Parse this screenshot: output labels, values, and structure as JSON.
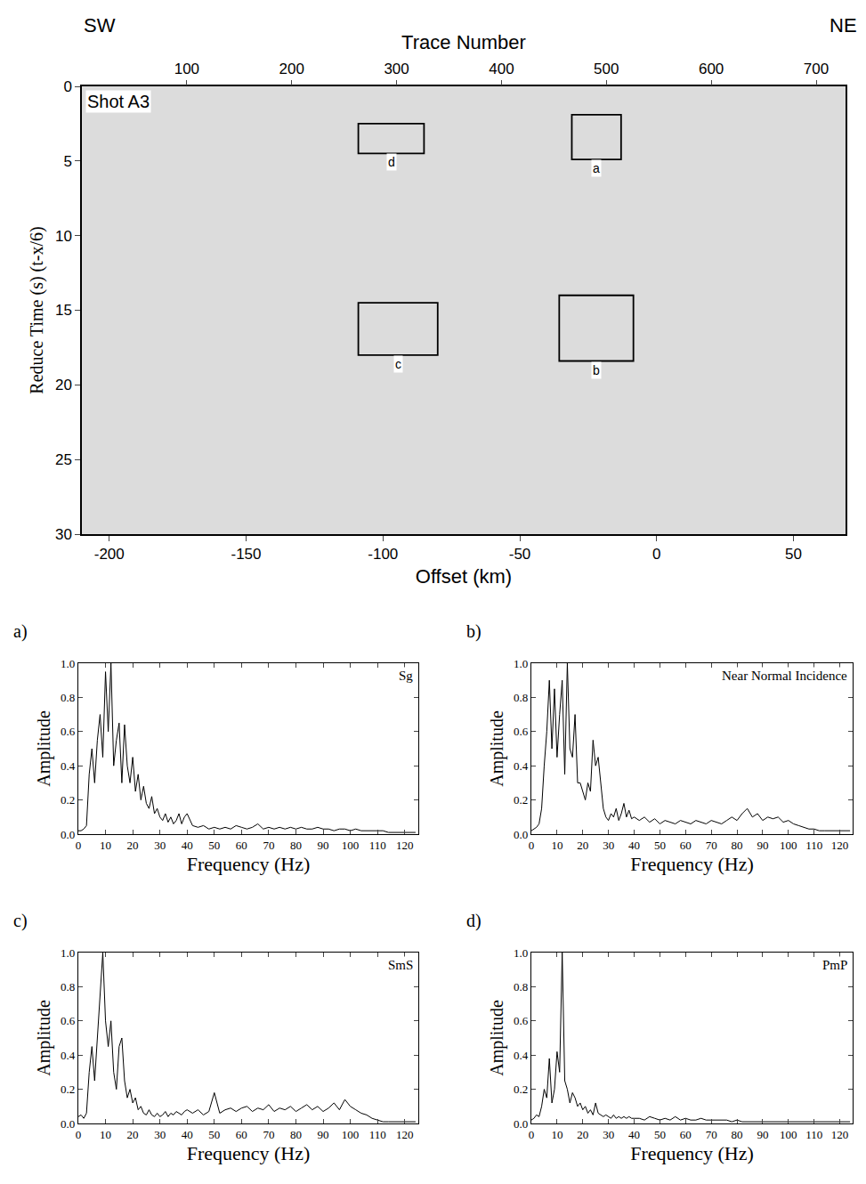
{
  "chart_data": [
    {
      "type": "record_section",
      "label": "Shot A3",
      "left_label": "SW",
      "right_label": "NE",
      "xlabel": "Offset (km)",
      "ylabel": "Reduce Time (s) (t-x/6)",
      "x2label": "Trace Number",
      "xlim": [
        -210,
        69
      ],
      "xticks": [
        -200,
        -150,
        -100,
        -50,
        0,
        50
      ],
      "x2lim": [
        0,
        728
      ],
      "x2ticks": [
        100,
        200,
        300,
        400,
        500,
        600,
        700
      ],
      "ylim": [
        0,
        30
      ],
      "yticks": [
        0,
        5,
        10,
        15,
        20,
        25,
        30
      ],
      "boxes": [
        {
          "label": "a",
          "x": [
            -31,
            -13
          ],
          "y": [
            1.9,
            4.9
          ]
        },
        {
          "label": "b",
          "x": [
            -35.6,
            -8.5
          ],
          "y": [
            14,
            18.4
          ]
        },
        {
          "label": "c",
          "x": [
            -109,
            -80
          ],
          "y": [
            14.5,
            18
          ]
        },
        {
          "label": "d",
          "x": [
            -109,
            -85
          ],
          "y": [
            2.5,
            4.5
          ]
        }
      ]
    },
    {
      "type": "line",
      "panel": "a)",
      "title": "Sg",
      "xlabel": "Frequency (Hz)",
      "ylabel": "Amplitude",
      "xlim": [
        0,
        125
      ],
      "xticks": [
        0,
        10,
        20,
        30,
        40,
        50,
        60,
        70,
        80,
        90,
        100,
        110,
        120
      ],
      "ylim": [
        0,
        1
      ],
      "yticks": [
        {
          "value": 0,
          "label": "0.0"
        },
        0.2,
        0.4,
        0.6,
        0.8,
        {
          "value": 1,
          "label": "1.0"
        }
      ],
      "color": "#000000",
      "x": [
        0,
        1,
        2,
        3,
        4,
        5,
        6,
        7,
        8,
        9,
        10,
        11,
        12,
        13,
        14,
        15,
        16,
        17,
        18,
        19,
        20,
        21,
        22,
        23,
        24,
        25,
        26,
        27,
        28,
        29,
        30,
        31,
        32,
        33,
        34,
        35,
        36,
        37,
        38,
        39,
        40,
        42,
        44,
        46,
        48,
        50,
        52,
        54,
        56,
        58,
        60,
        62,
        64,
        66,
        68,
        70,
        72,
        74,
        76,
        78,
        80,
        82,
        84,
        86,
        88,
        90,
        92,
        94,
        96,
        98,
        100,
        102,
        104,
        106,
        108,
        110,
        112,
        114,
        116,
        118,
        120,
        122,
        124
      ],
      "values": [
        0.02,
        0.02,
        0.03,
        0.05,
        0.35,
        0.5,
        0.3,
        0.55,
        0.7,
        0.45,
        0.95,
        0.6,
        1.0,
        0.4,
        0.55,
        0.65,
        0.3,
        0.64,
        0.4,
        0.3,
        0.45,
        0.25,
        0.35,
        0.2,
        0.28,
        0.18,
        0.15,
        0.22,
        0.12,
        0.15,
        0.1,
        0.08,
        0.12,
        0.07,
        0.1,
        0.06,
        0.08,
        0.12,
        0.06,
        0.1,
        0.12,
        0.05,
        0.04,
        0.05,
        0.03,
        0.04,
        0.03,
        0.04,
        0.03,
        0.05,
        0.04,
        0.03,
        0.04,
        0.06,
        0.03,
        0.04,
        0.03,
        0.04,
        0.03,
        0.04,
        0.03,
        0.04,
        0.03,
        0.03,
        0.04,
        0.03,
        0.03,
        0.02,
        0.03,
        0.03,
        0.02,
        0.03,
        0.02,
        0.02,
        0.02,
        0.02,
        0.02,
        0.01,
        0.01,
        0.01,
        0.01,
        0.01,
        0.01
      ]
    },
    {
      "type": "line",
      "panel": "b)",
      "title": "Near Normal Incidence",
      "xlabel": "Frequency (Hz)",
      "ylabel": "Amplitude",
      "xlim": [
        0,
        125
      ],
      "xticks": [
        0,
        10,
        20,
        30,
        40,
        50,
        60,
        70,
        80,
        90,
        100,
        110,
        120
      ],
      "ylim": [
        0,
        1
      ],
      "yticks": [
        {
          "value": 0,
          "label": "0.0"
        },
        0.2,
        0.4,
        0.6,
        0.8,
        {
          "value": 1,
          "label": "1.0"
        }
      ],
      "color": "#000000",
      "x": [
        0,
        1,
        2,
        3,
        4,
        5,
        6,
        7,
        8,
        9,
        10,
        11,
        12,
        13,
        14,
        15,
        16,
        17,
        18,
        19,
        20,
        21,
        22,
        23,
        24,
        25,
        26,
        27,
        28,
        29,
        30,
        31,
        32,
        33,
        34,
        35,
        36,
        37,
        38,
        39,
        40,
        42,
        44,
        46,
        48,
        50,
        52,
        54,
        56,
        58,
        60,
        62,
        64,
        66,
        68,
        70,
        72,
        74,
        76,
        78,
        80,
        82,
        84,
        86,
        88,
        90,
        92,
        94,
        96,
        98,
        100,
        102,
        104,
        106,
        108,
        110,
        112,
        114,
        116,
        118,
        120,
        122,
        124
      ],
      "values": [
        0.02,
        0.03,
        0.04,
        0.06,
        0.15,
        0.4,
        0.6,
        0.9,
        0.5,
        0.85,
        0.45,
        0.7,
        0.9,
        0.35,
        1.0,
        0.5,
        0.45,
        0.7,
        0.3,
        0.3,
        0.25,
        0.2,
        0.3,
        0.25,
        0.55,
        0.4,
        0.45,
        0.3,
        0.15,
        0.1,
        0.08,
        0.12,
        0.1,
        0.15,
        0.08,
        0.12,
        0.18,
        0.1,
        0.14,
        0.09,
        0.1,
        0.08,
        0.1,
        0.07,
        0.09,
        0.06,
        0.08,
        0.07,
        0.06,
        0.08,
        0.07,
        0.06,
        0.08,
        0.07,
        0.06,
        0.08,
        0.07,
        0.06,
        0.08,
        0.1,
        0.08,
        0.12,
        0.15,
        0.1,
        0.12,
        0.08,
        0.1,
        0.09,
        0.1,
        0.07,
        0.08,
        0.06,
        0.05,
        0.04,
        0.03,
        0.03,
        0.02,
        0.02,
        0.02,
        0.02,
        0.02,
        0.02,
        0.02
      ]
    },
    {
      "type": "line",
      "panel": "c)",
      "title": "SmS",
      "xlabel": "Frequency (Hz)",
      "ylabel": "Amplitude",
      "xlim": [
        0,
        125
      ],
      "xticks": [
        0,
        10,
        20,
        30,
        40,
        50,
        60,
        70,
        80,
        90,
        100,
        110,
        120
      ],
      "ylim": [
        0,
        1
      ],
      "yticks": [
        {
          "value": 0,
          "label": "0.0"
        },
        0.2,
        0.4,
        0.6,
        0.8,
        {
          "value": 1,
          "label": "1.0"
        }
      ],
      "color": "#000000",
      "x": [
        0,
        1,
        2,
        3,
        4,
        5,
        6,
        7,
        8,
        9,
        10,
        11,
        12,
        13,
        14,
        15,
        16,
        17,
        18,
        19,
        20,
        21,
        22,
        23,
        24,
        25,
        26,
        27,
        28,
        29,
        30,
        31,
        32,
        33,
        34,
        35,
        36,
        37,
        38,
        39,
        40,
        42,
        44,
        46,
        48,
        50,
        52,
        54,
        56,
        58,
        60,
        62,
        64,
        66,
        68,
        70,
        72,
        74,
        76,
        78,
        80,
        82,
        84,
        86,
        88,
        90,
        92,
        94,
        96,
        98,
        100,
        102,
        104,
        106,
        108,
        110,
        112,
        114,
        116,
        118,
        120,
        122,
        124
      ],
      "values": [
        0.04,
        0.05,
        0.03,
        0.06,
        0.3,
        0.45,
        0.25,
        0.5,
        0.8,
        1.0,
        0.6,
        0.45,
        0.6,
        0.3,
        0.2,
        0.45,
        0.5,
        0.25,
        0.15,
        0.2,
        0.12,
        0.15,
        0.08,
        0.1,
        0.06,
        0.05,
        0.08,
        0.05,
        0.04,
        0.06,
        0.04,
        0.05,
        0.07,
        0.04,
        0.06,
        0.05,
        0.07,
        0.06,
        0.05,
        0.07,
        0.08,
        0.06,
        0.08,
        0.05,
        0.07,
        0.18,
        0.06,
        0.08,
        0.09,
        0.07,
        0.09,
        0.1,
        0.07,
        0.09,
        0.08,
        0.11,
        0.07,
        0.09,
        0.08,
        0.1,
        0.07,
        0.09,
        0.11,
        0.08,
        0.1,
        0.07,
        0.09,
        0.12,
        0.08,
        0.14,
        0.1,
        0.08,
        0.06,
        0.05,
        0.03,
        0.02,
        0.01,
        0.01,
        0.01,
        0.01,
        0.01,
        0.01,
        0.01
      ]
    },
    {
      "type": "line",
      "panel": "d)",
      "title": "PmP",
      "xlabel": "Frequency (Hz)",
      "ylabel": "Amplitude",
      "xlim": [
        0,
        125
      ],
      "xticks": [
        0,
        10,
        20,
        30,
        40,
        50,
        60,
        70,
        80,
        90,
        100,
        110,
        120
      ],
      "ylim": [
        0,
        1
      ],
      "yticks": [
        {
          "value": 0,
          "label": "0.0"
        },
        0.2,
        0.4,
        0.6,
        0.8,
        {
          "value": 1,
          "label": "1.0"
        }
      ],
      "color": "#000000",
      "x": [
        0,
        1,
        2,
        3,
        4,
        5,
        6,
        7,
        8,
        9,
        10,
        11,
        12,
        13,
        14,
        15,
        16,
        17,
        18,
        19,
        20,
        21,
        22,
        23,
        24,
        25,
        26,
        27,
        28,
        29,
        30,
        31,
        32,
        33,
        34,
        35,
        36,
        37,
        38,
        39,
        40,
        42,
        44,
        46,
        48,
        50,
        52,
        54,
        56,
        58,
        60,
        62,
        64,
        66,
        68,
        70,
        72,
        74,
        76,
        78,
        80,
        82,
        84,
        86,
        88,
        90,
        92,
        94,
        96,
        98,
        100,
        102,
        104,
        106,
        108,
        110,
        112,
        114,
        116,
        118,
        120,
        122,
        124
      ],
      "values": [
        0.02,
        0.03,
        0.05,
        0.04,
        0.1,
        0.2,
        0.15,
        0.38,
        0.12,
        0.2,
        0.42,
        0.3,
        1.0,
        0.25,
        0.2,
        0.12,
        0.18,
        0.15,
        0.1,
        0.12,
        0.08,
        0.1,
        0.06,
        0.08,
        0.05,
        0.12,
        0.06,
        0.05,
        0.04,
        0.05,
        0.04,
        0.03,
        0.05,
        0.03,
        0.04,
        0.03,
        0.04,
        0.03,
        0.04,
        0.03,
        0.03,
        0.03,
        0.02,
        0.04,
        0.03,
        0.02,
        0.03,
        0.02,
        0.04,
        0.02,
        0.03,
        0.02,
        0.02,
        0.03,
        0.02,
        0.02,
        0.02,
        0.02,
        0.02,
        0.01,
        0.02,
        0.01,
        0.01,
        0.01,
        0.01,
        0.01,
        0.01,
        0.01,
        0.01,
        0.01,
        0.01,
        0.01,
        0.01,
        0.01,
        0.01,
        0.01,
        0.01,
        0.01,
        0.01,
        0.01,
        0.01,
        0.01,
        0.01
      ]
    }
  ]
}
